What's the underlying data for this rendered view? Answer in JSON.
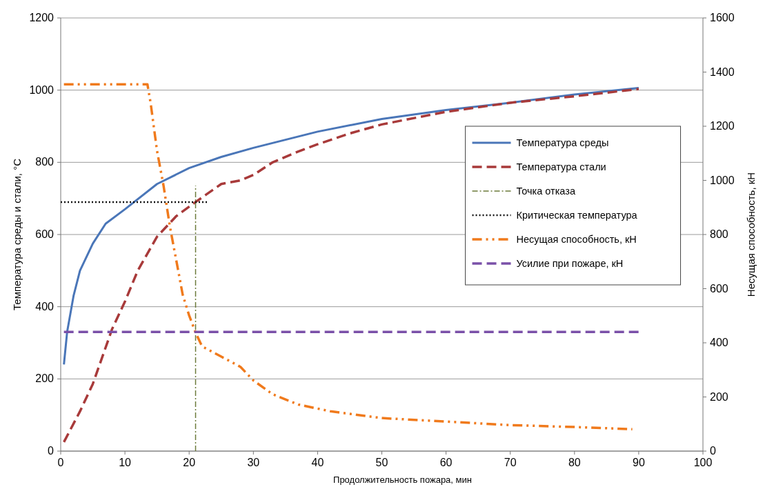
{
  "chart_data": {
    "type": "line",
    "xlabel": "Продолжительность  пожара, мин",
    "ylabel": "Температура среды и стали, °C",
    "y2label": "Несущая способность, кН",
    "xlim": [
      0,
      100
    ],
    "xticks": [
      0,
      10,
      20,
      30,
      40,
      50,
      60,
      70,
      80,
      90,
      100
    ],
    "ylim": [
      0,
      1200
    ],
    "yticks": [
      0,
      200,
      400,
      600,
      800,
      1000,
      1200
    ],
    "y2lim": [
      0,
      1600
    ],
    "y2ticks": [
      0,
      200,
      400,
      600,
      800,
      1000,
      1200,
      1400,
      1600
    ],
    "grid": "y",
    "legend": "right",
    "series": [
      {
        "name": "Температура среды",
        "color": "#4a76b8",
        "line_style": "solid",
        "x": [
          0.5,
          1,
          2,
          3,
          5,
          7,
          10,
          15,
          20,
          25,
          30,
          40,
          50,
          60,
          70,
          80,
          90
        ],
        "values": [
          240,
          330,
          430,
          500,
          575,
          630,
          670,
          740,
          784,
          815,
          840,
          885,
          920,
          945,
          965,
          988,
          1006
        ]
      },
      {
        "name": "Температура стали",
        "color": "#a83a3a",
        "line_style": "dashed",
        "x": [
          0.5,
          3,
          5,
          8,
          10,
          12,
          15,
          18,
          21,
          25,
          28,
          30,
          33,
          37,
          40,
          45,
          50,
          60,
          70,
          80,
          90
        ],
        "values": [
          25,
          110,
          186,
          338,
          414,
          500,
          594,
          651,
          690,
          740,
          750,
          765,
          800,
          830,
          850,
          880,
          905,
          940,
          965,
          983,
          1003
        ]
      },
      {
        "name": "Точка отказа",
        "color": "#6b7a3a",
        "line_style": "dashdot",
        "x": [
          21,
          21
        ],
        "values": [
          0,
          735
        ]
      },
      {
        "name": "Критическая температура",
        "color": "#111111",
        "line_style": "dotted",
        "x": [
          0,
          23
        ],
        "values": [
          690,
          690
        ]
      },
      {
        "name": "Несущая способность, кН",
        "color": "#f07a1c",
        "line_style": "dashdotdot",
        "axis": "y2",
        "x": [
          0.5,
          13.5,
          14,
          15,
          16,
          17,
          18,
          19,
          20,
          21,
          22,
          25,
          28,
          30,
          33,
          37,
          42,
          50,
          60,
          70,
          80,
          89
        ],
        "values": [
          1355,
          1355,
          1286,
          1109,
          982,
          830,
          704,
          577,
          501,
          438,
          387,
          349,
          311,
          261,
          210,
          172,
          147,
          122,
          109,
          96,
          89,
          81
        ]
      },
      {
        "name": "Усилие при пожаре, кН",
        "color": "#7a50a8",
        "line_style": "dashed",
        "axis": "y2",
        "x": [
          0.5,
          90
        ],
        "values": [
          440,
          440
        ]
      }
    ]
  }
}
